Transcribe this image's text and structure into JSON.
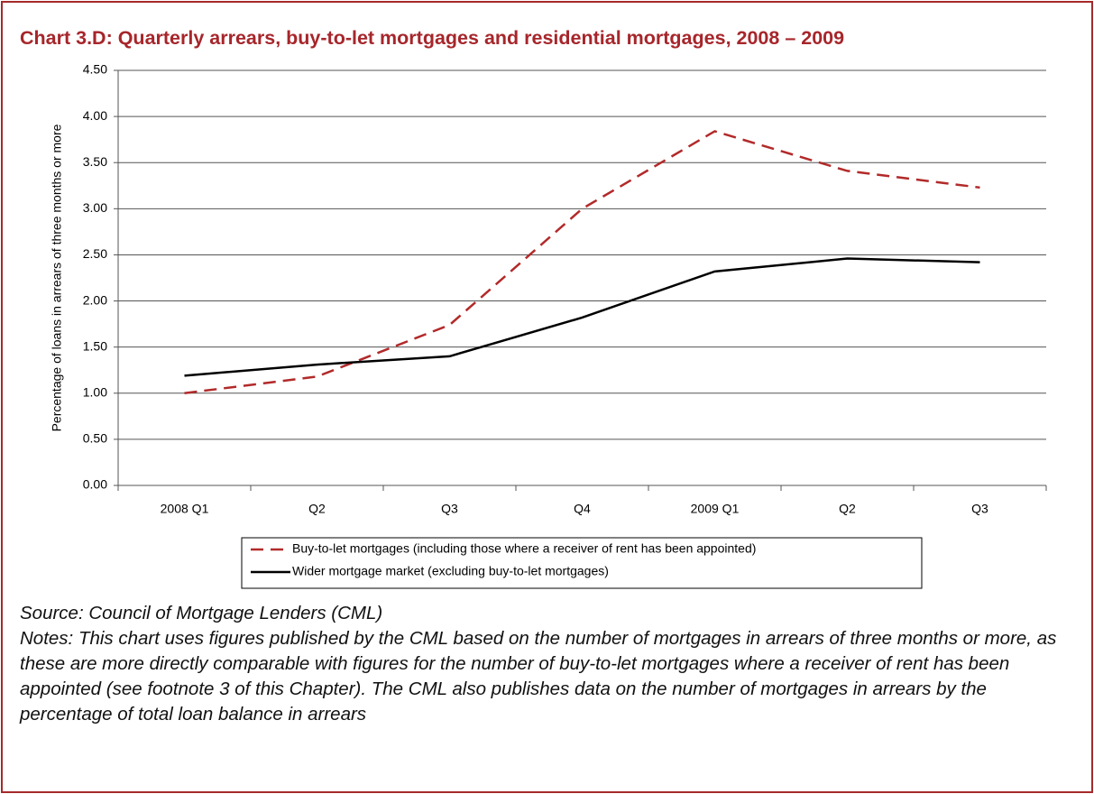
{
  "chart_data": {
    "type": "line",
    "title": "Chart 3.D: Quarterly arrears, buy-to-let mortgages and residential mortgages, 2008 – 2009",
    "ylabel": "Percentage of loans in arrears of three months or more",
    "categories": [
      "2008 Q1",
      "Q2",
      "Q3",
      "Q4",
      "2009 Q1",
      "Q2",
      "Q3"
    ],
    "series": [
      {
        "name": "Buy-to-let mortgages (including those where a receiver of rent has been appointed)",
        "color": "#b22a2a",
        "dashed": true,
        "values": [
          1.0,
          1.18,
          1.74,
          3.0,
          3.84,
          3.41,
          3.23
        ]
      },
      {
        "name": "Wider mortgage market (excluding buy-to-let mortgages)",
        "color": "#000000",
        "dashed": false,
        "values": [
          1.19,
          1.31,
          1.4,
          1.82,
          2.32,
          2.46,
          2.42
        ]
      }
    ],
    "ylim": [
      0,
      4.5
    ],
    "yticks": [
      {
        "value": 0,
        "label": "0.00"
      },
      {
        "value": 0.5,
        "label": "0.50"
      },
      {
        "value": 1,
        "label": "1.00"
      },
      {
        "value": 1.5,
        "label": "1.50"
      },
      {
        "value": 2,
        "label": "2.00"
      },
      {
        "value": 2.5,
        "label": "2.50"
      },
      {
        "value": 3,
        "label": "3.00"
      },
      {
        "value": 3.5,
        "label": "3.50"
      },
      {
        "value": 4,
        "label": "4.00"
      },
      {
        "value": 4.5,
        "label": "4.50"
      }
    ],
    "grid": true,
    "legend": "bottom",
    "source": "Source: Council of Mortgage Lenders (CML)",
    "notes": "Notes: This chart uses figures published by the CML based on the number of mortgages in arrears of three months or more, as these are more directly comparable with figures for the number of buy-to-let mortgages where a receiver of rent has been appointed (see footnote 3 of this Chapter). The CML also publishes data on the number of mortgages in arrears by the percentage of total loan balance in arrears"
  }
}
